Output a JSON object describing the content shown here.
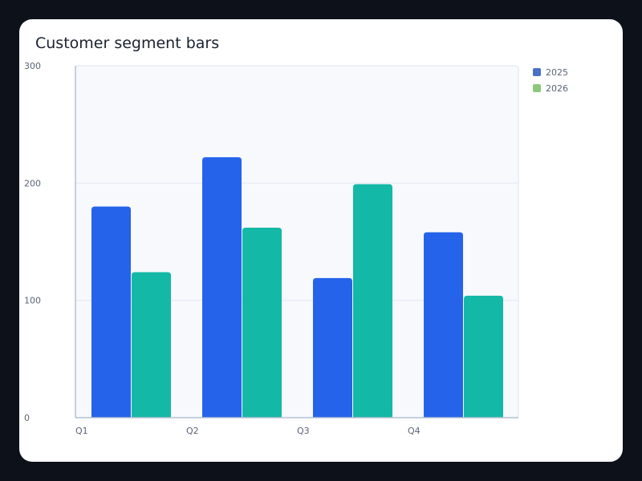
{
  "chart_data": {
    "type": "bar",
    "title": "Customer segment bars",
    "categories": [
      "Q1",
      "Q2",
      "Q3",
      "Q4"
    ],
    "series": [
      {
        "name": "2025",
        "values": [
          180,
          222,
          119,
          158
        ],
        "color": "#2563eb",
        "legend_color": "#4a6fc9"
      },
      {
        "name": "2026",
        "values": [
          124,
          162,
          199,
          104
        ],
        "color": "#14b8a6",
        "legend_color": "#8cc97a"
      }
    ],
    "yticks": [
      0,
      100,
      200,
      300
    ],
    "ylim": [
      0,
      300
    ],
    "xlabel": "",
    "ylabel": "",
    "grid": true,
    "legend": "top-right"
  }
}
